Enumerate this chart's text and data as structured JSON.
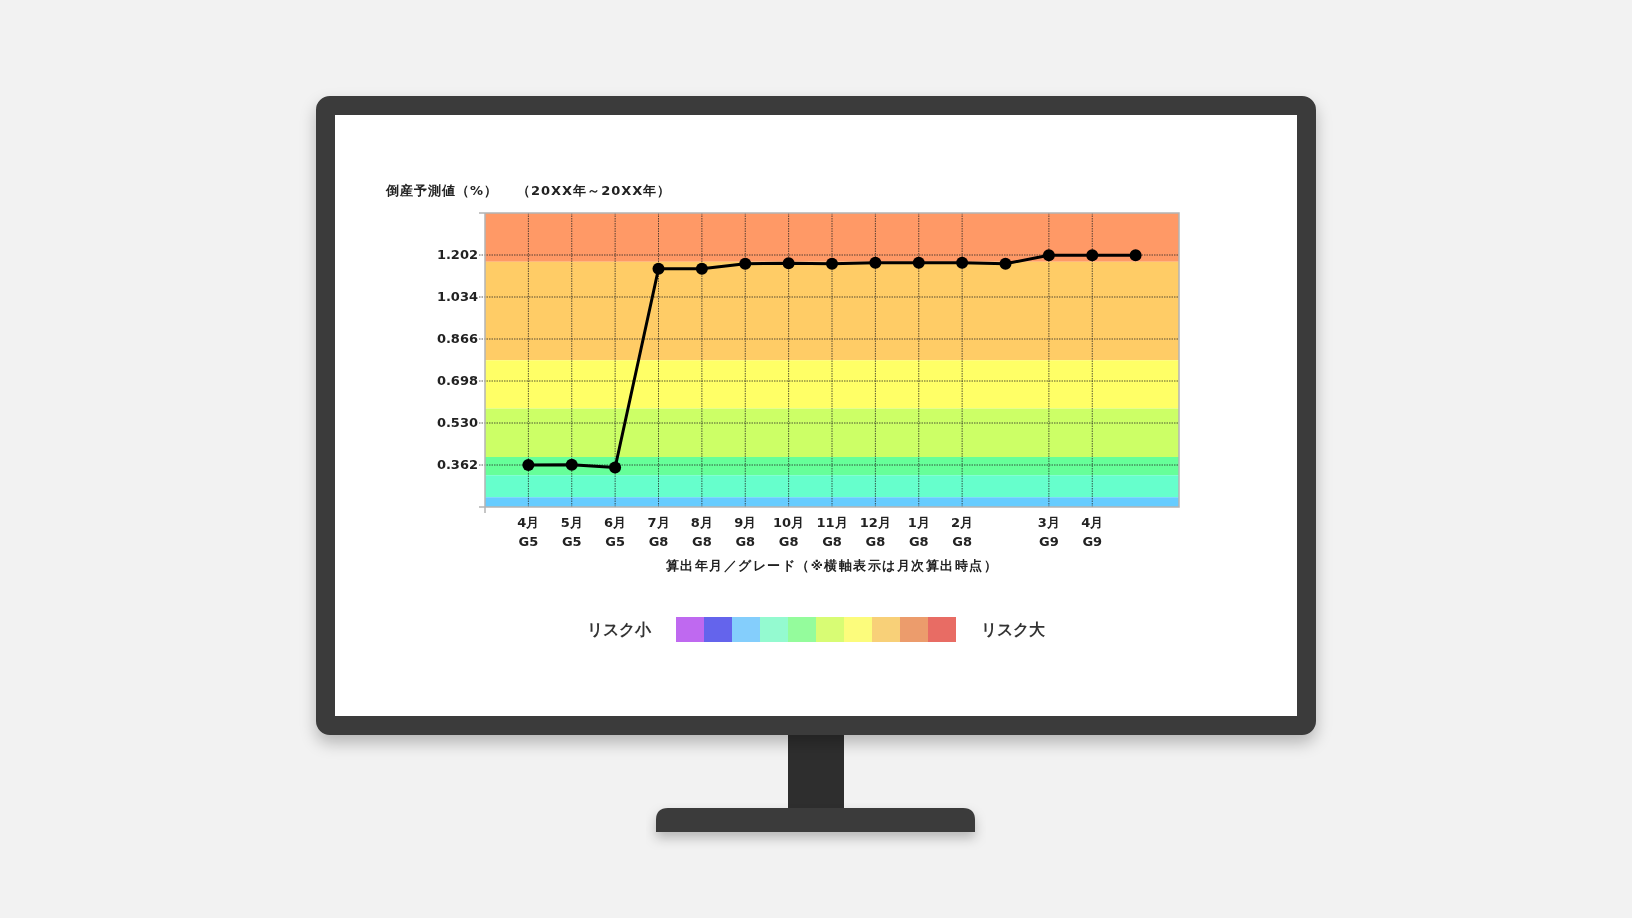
{
  "chart_data": {
    "type": "line",
    "title": "（20XX年～20XX年）",
    "ylabel": "倒産予測値（%）",
    "xlabel": "算出年月／グレード（※横軸表示は月次算出時点）",
    "categories": [
      "4月\nG5",
      "5月\nG5",
      "6月\nG5",
      "7月\nG8",
      "8月\nG8",
      "9月\nG8",
      "10月\nG8",
      "11月\nG8",
      "12月\nG8",
      "1月\nG8",
      "2月\nG8",
      null,
      "3月\nG9",
      "4月\nG9",
      null
    ],
    "ylim": [
      0.194,
      1.37
    ],
    "yticks": [
      0.362,
      {
        "value": 0.53,
        "label": "0.530"
      },
      0.698,
      0.866,
      1.034,
      1.202
    ],
    "series": [
      {
        "color": "#000000",
        "values": [
          0.362,
          0.363,
          0.352,
          1.147,
          1.147,
          1.167,
          1.169,
          1.167,
          1.171,
          1.171,
          1.171,
          1.167,
          1.201,
          1.201,
          1.201
        ]
      }
    ],
    "marker": "circle",
    "line_style": "solid",
    "grid": true,
    "bands": [
      {
        "axis": "y",
        "from": 1.175,
        "to": 1.37,
        "color": "#ff9966"
      },
      {
        "axis": "y",
        "from": 0.781,
        "to": 1.175,
        "color": "#ffcc66"
      },
      {
        "axis": "y",
        "from": 0.588,
        "to": 0.781,
        "color": "#ffff66"
      },
      {
        "axis": "y",
        "from": 0.394,
        "to": 0.588,
        "color": "#ccff66"
      },
      {
        "axis": "y",
        "from": 0.321,
        "to": 0.394,
        "color": "#66ff99"
      },
      {
        "axis": "y",
        "from": 0.233,
        "to": 0.321,
        "color": "#66ffcc"
      },
      {
        "axis": "y",
        "from": 0.194,
        "to": 0.233,
        "color": "#66ccff"
      }
    ],
    "annotations": [
      "リスク小",
      "リスク大"
    ]
  }
}
